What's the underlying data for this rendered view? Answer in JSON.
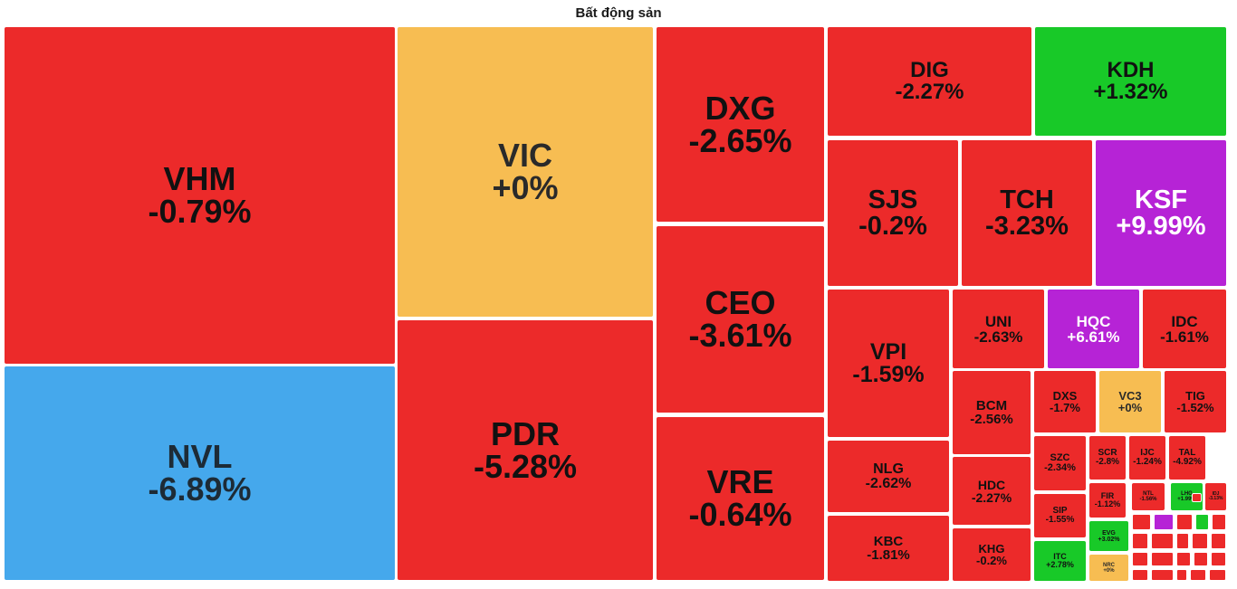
{
  "chart_data": {
    "type": "treemap",
    "title": "Bất động sản",
    "colors": {
      "down": "#ec2a2a",
      "up": "#18c928",
      "unchanged": "#f7bd52",
      "ceiling": "#b623d6",
      "floor": "#45a8ec"
    },
    "items": [
      {
        "ticker": "VHM",
        "change": "-0.79%",
        "status": "down"
      },
      {
        "ticker": "NVL",
        "change": "-6.89%",
        "status": "floor"
      },
      {
        "ticker": "VIC",
        "change": "+0%",
        "status": "unchanged"
      },
      {
        "ticker": "PDR",
        "change": "-5.28%",
        "status": "down"
      },
      {
        "ticker": "DXG",
        "change": "-2.65%",
        "status": "down"
      },
      {
        "ticker": "CEO",
        "change": "-3.61%",
        "status": "down"
      },
      {
        "ticker": "VRE",
        "change": "-0.64%",
        "status": "down"
      },
      {
        "ticker": "DIG",
        "change": "-2.27%",
        "status": "down"
      },
      {
        "ticker": "KDH",
        "change": "+1.32%",
        "status": "up"
      },
      {
        "ticker": "SJS",
        "change": "-0.2%",
        "status": "down"
      },
      {
        "ticker": "TCH",
        "change": "-3.23%",
        "status": "down"
      },
      {
        "ticker": "KSF",
        "change": "+9.99%",
        "status": "ceiling"
      },
      {
        "ticker": "VPI",
        "change": "-1.59%",
        "status": "down"
      },
      {
        "ticker": "UNI",
        "change": "-2.63%",
        "status": "down"
      },
      {
        "ticker": "HQC",
        "change": "+6.61%",
        "status": "ceiling"
      },
      {
        "ticker": "IDC",
        "change": "-1.61%",
        "status": "down"
      },
      {
        "ticker": "NLG",
        "change": "-2.62%",
        "status": "down"
      },
      {
        "ticker": "BCM",
        "change": "-2.56%",
        "status": "down"
      },
      {
        "ticker": "DXS",
        "change": "-1.7%",
        "status": "down"
      },
      {
        "ticker": "VC3",
        "change": "+0%",
        "status": "unchanged"
      },
      {
        "ticker": "TIG",
        "change": "-1.52%",
        "status": "down"
      },
      {
        "ticker": "KBC",
        "change": "-1.81%",
        "status": "down"
      },
      {
        "ticker": "HDC",
        "change": "-2.27%",
        "status": "down"
      },
      {
        "ticker": "KHG",
        "change": "-0.2%",
        "status": "down"
      },
      {
        "ticker": "SZC",
        "change": "-2.34%",
        "status": "down"
      },
      {
        "ticker": "SCR",
        "change": "-2.8%",
        "status": "down"
      },
      {
        "ticker": "IJC",
        "change": "-1.24%",
        "status": "down"
      },
      {
        "ticker": "TAL",
        "change": "-4.92%",
        "status": "down"
      },
      {
        "ticker": "SIP",
        "change": "-1.55%",
        "status": "down"
      },
      {
        "ticker": "FIR",
        "change": "-1.12%",
        "status": "down"
      },
      {
        "ticker": "NTL",
        "change": "-1.56%",
        "status": "down"
      },
      {
        "ticker": "LHG",
        "change": "+1.99%",
        "status": "up"
      },
      {
        "ticker": "IDJ",
        "change": "-3.13%",
        "status": "down"
      },
      {
        "ticker": "ITC",
        "change": "+2.78%",
        "status": "up"
      },
      {
        "ticker": "EVG",
        "change": "+3.02%",
        "status": "up"
      },
      {
        "ticker": "NRC",
        "change": "+0%",
        "status": "unchanged"
      }
    ],
    "minor_tiles": [
      {
        "status": "down"
      },
      {
        "status": "ceiling"
      },
      {
        "status": "down"
      },
      {
        "status": "up"
      },
      {
        "status": "down"
      },
      {
        "status": "down"
      },
      {
        "status": "down"
      },
      {
        "status": "down"
      },
      {
        "status": "down"
      },
      {
        "status": "down"
      },
      {
        "status": "down"
      },
      {
        "status": "down"
      },
      {
        "status": "down"
      },
      {
        "status": "down"
      },
      {
        "status": "down"
      },
      {
        "status": "down"
      },
      {
        "status": "down"
      },
      {
        "status": "down"
      },
      {
        "status": "down"
      },
      {
        "status": "down"
      },
      {
        "status": "down"
      }
    ]
  }
}
